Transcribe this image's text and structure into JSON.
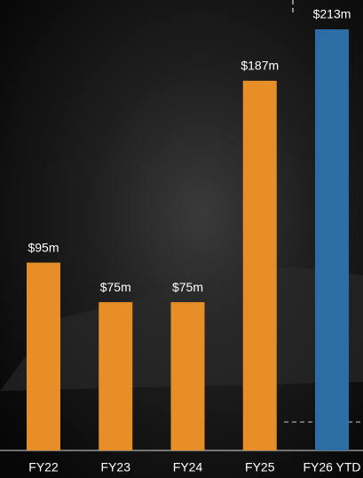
{
  "chart_data": {
    "type": "bar",
    "categories": [
      "FY22",
      "FY23",
      "FY24",
      "FY25",
      "FY26 YTD"
    ],
    "values": [
      95,
      75,
      75,
      187,
      213
    ],
    "value_labels": [
      "$95m",
      "$75m",
      "$75m",
      "$187m",
      "$213m"
    ],
    "colors": [
      "#e68f28",
      "#e68f28",
      "#e68f28",
      "#e68f28",
      "#2c6ea3"
    ]
  }
}
